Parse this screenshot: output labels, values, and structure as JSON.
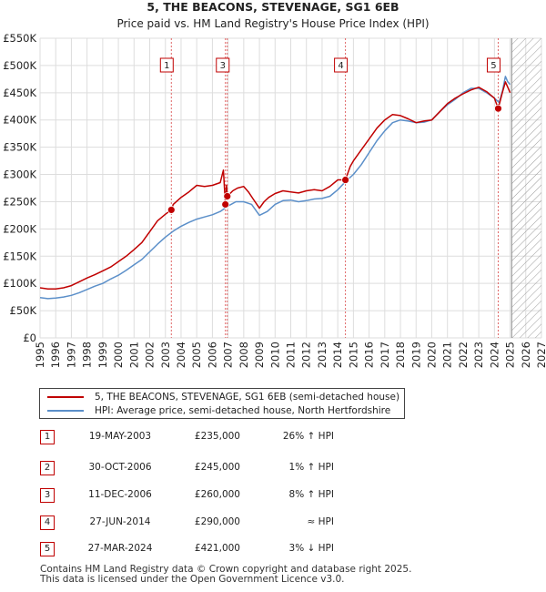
{
  "chart_data": {
    "type": "line",
    "title": "5, THE BEACONS, STEVENAGE, SG1 6EB",
    "subtitle": "Price paid vs. HM Land Registry's House Price Index (HPI)",
    "xlabel": "",
    "ylabel": "",
    "xlim": [
      1995,
      2027
    ],
    "ylim": [
      0,
      550000
    ],
    "yticks": [
      0,
      50000,
      100000,
      150000,
      200000,
      250000,
      300000,
      350000,
      400000,
      450000,
      500000,
      550000
    ],
    "ytick_labels": [
      "£0",
      "£50K",
      "£100K",
      "£150K",
      "£200K",
      "£250K",
      "£300K",
      "£350K",
      "£400K",
      "£450K",
      "£500K",
      "£550K"
    ],
    "xticks": [
      1995,
      1996,
      1997,
      1998,
      1999,
      2000,
      2001,
      2002,
      2003,
      2004,
      2005,
      2006,
      2007,
      2008,
      2009,
      2010,
      2011,
      2012,
      2013,
      2014,
      2015,
      2016,
      2017,
      2018,
      2019,
      2020,
      2021,
      2022,
      2023,
      2024,
      2025,
      2026,
      2027
    ],
    "xtick_labels": [
      "1995",
      "1996",
      "1997",
      "1998",
      "1999",
      "2000",
      "2001",
      "2002",
      "2003",
      "2004",
      "2005",
      "2006",
      "2007",
      "2008",
      "2009",
      "2010",
      "2011",
      "2012",
      "2013",
      "2014",
      "2015",
      "2016",
      "2017",
      "2018",
      "2019",
      "2020",
      "2021",
      "2022",
      "2023",
      "2024",
      "2025",
      "2026",
      "2027"
    ],
    "grid": true,
    "future_hatch_from": 2025.1,
    "series": [
      {
        "name": "5, THE BEACONS, STEVENAGE, SG1 6EB (semi-detached house)",
        "color": "#c00000",
        "x": [
          1995.0,
          1995.5,
          1996.0,
          1996.5,
          1997.0,
          1997.5,
          1998.0,
          1998.5,
          1999.0,
          1999.5,
          2000.0,
          2000.5,
          2001.0,
          2001.5,
          2002.0,
          2002.5,
          2003.0,
          2003.38,
          2003.5,
          2004.0,
          2004.5,
          2005.0,
          2005.5,
          2006.0,
          2006.5,
          2006.7,
          2006.83,
          2006.9,
          2006.95,
          2007.3,
          2007.6,
          2008.0,
          2008.3,
          2008.6,
          2009.0,
          2009.3,
          2009.6,
          2010.0,
          2010.5,
          2011.0,
          2011.5,
          2012.0,
          2012.5,
          2013.0,
          2013.5,
          2014.0,
          2014.49,
          2014.8,
          2015.0,
          2015.5,
          2016.0,
          2016.5,
          2017.0,
          2017.5,
          2018.0,
          2018.5,
          2019.0,
          2019.5,
          2020.0,
          2020.5,
          2021.0,
          2021.5,
          2022.0,
          2022.5,
          2023.0,
          2023.5,
          2024.0,
          2024.24,
          2024.5,
          2024.7,
          2024.85,
          2025.0
        ],
        "values": [
          92000,
          90000,
          90000,
          92000,
          96000,
          103000,
          110000,
          116000,
          123000,
          130000,
          140000,
          150000,
          162000,
          175000,
          195000,
          215000,
          227000,
          235000,
          245000,
          258000,
          268000,
          280000,
          278000,
          280000,
          285000,
          308000,
          245000,
          280000,
          260000,
          270000,
          275000,
          278000,
          268000,
          255000,
          238000,
          250000,
          258000,
          265000,
          270000,
          268000,
          266000,
          270000,
          272000,
          270000,
          278000,
          290000,
          290000,
          315000,
          325000,
          345000,
          365000,
          385000,
          400000,
          410000,
          408000,
          402000,
          395000,
          398000,
          400000,
          415000,
          430000,
          440000,
          448000,
          455000,
          460000,
          452000,
          440000,
          421000,
          450000,
          470000,
          460000,
          450000
        ]
      },
      {
        "name": "HPI: Average price, semi-detached house, North Hertfordshire",
        "color": "#5b8fc9",
        "x": [
          1995.0,
          1995.5,
          1996.0,
          1996.5,
          1997.0,
          1997.5,
          1998.0,
          1998.5,
          1999.0,
          1999.5,
          2000.0,
          2000.5,
          2001.0,
          2001.5,
          2002.0,
          2002.5,
          2003.0,
          2003.5,
          2004.0,
          2004.5,
          2005.0,
          2005.5,
          2006.0,
          2006.5,
          2007.0,
          2007.5,
          2008.0,
          2008.5,
          2009.0,
          2009.5,
          2010.0,
          2010.5,
          2011.0,
          2011.5,
          2012.0,
          2012.5,
          2013.0,
          2013.5,
          2014.0,
          2014.5,
          2015.0,
          2015.5,
          2016.0,
          2016.5,
          2017.0,
          2017.5,
          2018.0,
          2018.5,
          2019.0,
          2019.5,
          2020.0,
          2020.5,
          2021.0,
          2021.5,
          2022.0,
          2022.5,
          2023.0,
          2023.5,
          2024.0,
          2024.3,
          2024.5,
          2024.7,
          2024.85,
          2025.0
        ],
        "values": [
          74000,
          72000,
          73000,
          75000,
          78000,
          83000,
          89000,
          95000,
          100000,
          108000,
          115000,
          124000,
          134000,
          144000,
          158000,
          172000,
          185000,
          196000,
          205000,
          212000,
          218000,
          222000,
          226000,
          232000,
          242000,
          250000,
          250000,
          245000,
          225000,
          232000,
          245000,
          252000,
          253000,
          250000,
          252000,
          255000,
          256000,
          260000,
          272000,
          287000,
          300000,
          318000,
          340000,
          362000,
          380000,
          395000,
          400000,
          398000,
          395000,
          396000,
          400000,
          415000,
          428000,
          438000,
          450000,
          458000,
          458000,
          450000,
          440000,
          432000,
          452000,
          480000,
          470000,
          465000
        ]
      }
    ],
    "markers": [
      {
        "label": "1",
        "x": 2003.38,
        "value": 235000
      },
      {
        "label": "2",
        "x": 2006.83,
        "value": 245000
      },
      {
        "label": "3",
        "x": 2006.95,
        "value": 260000
      },
      {
        "label": "4",
        "x": 2014.49,
        "value": 290000
      },
      {
        "label": "5",
        "x": 2024.24,
        "value": 421000
      }
    ],
    "marker_boxes": [
      "1",
      "3",
      "4",
      "5"
    ]
  },
  "legend": {
    "property_label": "5, THE BEACONS, STEVENAGE, SG1 6EB (semi-detached house)",
    "hpi_label": "HPI: Average price, semi-detached house, North Hertfordshire"
  },
  "transactions": [
    {
      "num": "1",
      "date": "19-MAY-2003",
      "price": "£235,000",
      "hpi": "26% ↑ HPI"
    },
    {
      "num": "2",
      "date": "30-OCT-2006",
      "price": "£245,000",
      "hpi": "1% ↑ HPI"
    },
    {
      "num": "3",
      "date": "11-DEC-2006",
      "price": "£260,000",
      "hpi": "8% ↑ HPI"
    },
    {
      "num": "4",
      "date": "27-JUN-2014",
      "price": "£290,000",
      "hpi": "≈ HPI"
    },
    {
      "num": "5",
      "date": "27-MAR-2024",
      "price": "£421,000",
      "hpi": "3% ↓ HPI"
    }
  ],
  "footer": {
    "line1": "Contains HM Land Registry data © Crown copyright and database right 2025.",
    "line2": "This data is licensed under the Open Government Licence v3.0."
  }
}
